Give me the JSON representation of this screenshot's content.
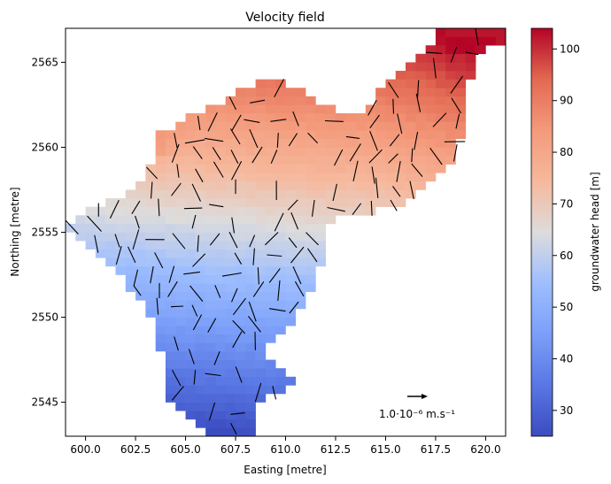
{
  "chart_data": {
    "type": "heatmap",
    "title": "Velocity field",
    "xlabel": "Easting [metre]",
    "ylabel": "Northing [metre]",
    "xlim": [
      599.0,
      621.0
    ],
    "ylim": [
      2543.0,
      2567.0
    ],
    "x_ticks": [
      600.0,
      602.5,
      605.0,
      607.5,
      610.0,
      612.5,
      615.0,
      617.5,
      620.0
    ],
    "x_tick_labels": [
      "600.0",
      "602.5",
      "605.0",
      "607.5",
      "610.0",
      "612.5",
      "615.0",
      "617.5",
      "620.0"
    ],
    "y_ticks": [
      2545,
      2550,
      2555,
      2560,
      2565
    ],
    "y_tick_labels": [
      "2545",
      "2550",
      "2555",
      "2560",
      "2565"
    ],
    "colorbar": {
      "label": "groundwater head [m]",
      "colormap": "coolwarm",
      "range": [
        25,
        104
      ],
      "ticks": [
        30,
        40,
        50,
        60,
        70,
        80,
        90,
        100
      ],
      "tick_labels": [
        "30",
        "40",
        "50",
        "60",
        "70",
        "80",
        "90",
        "100"
      ]
    },
    "quiver_key": {
      "label": "1.0·10⁻⁶ m.s⁻¹",
      "x": 616.5,
      "y": 2545.4,
      "value": 1e-06
    },
    "grid": false,
    "cell_size": 0.5,
    "field_description_values": {
      "south_min_head": 25,
      "north_max_head": 104,
      "mid_head": 64
    }
  }
}
